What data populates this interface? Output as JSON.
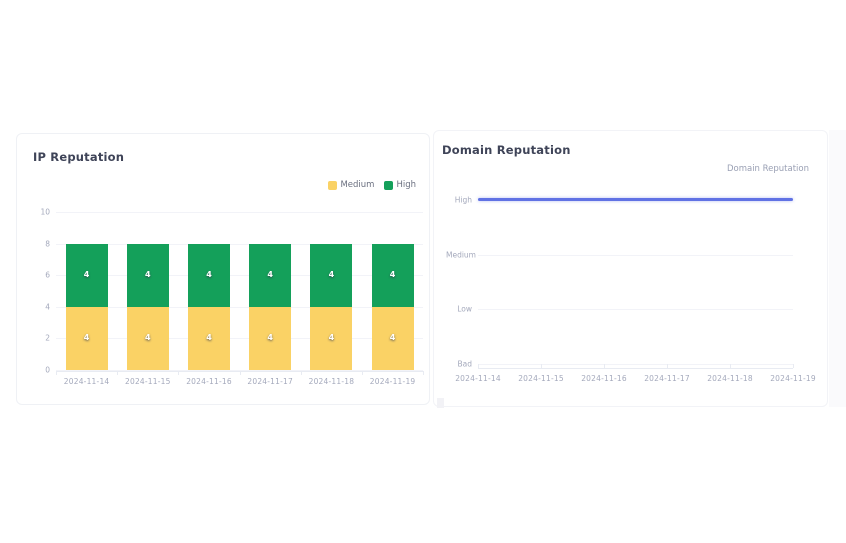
{
  "chart_data": [
    {
      "type": "bar",
      "stacked": true,
      "title": "IP Reputation",
      "categories": [
        "2024-11-14",
        "2024-11-15",
        "2024-11-16",
        "2024-11-17",
        "2024-11-18",
        "2024-11-19"
      ],
      "series": [
        {
          "name": "Medium",
          "color": "#fad265",
          "values": [
            4,
            4,
            4,
            4,
            4,
            4
          ]
        },
        {
          "name": "High",
          "color": "#14a05a",
          "values": [
            4,
            4,
            4,
            4,
            4,
            4
          ]
        }
      ],
      "data_labels": [
        "4",
        "4",
        "4",
        "4",
        "4",
        "4"
      ],
      "xlabel": "",
      "ylabel": "",
      "ylim": [
        0,
        10
      ],
      "yticks": [
        0,
        2,
        4,
        6,
        8,
        10
      ],
      "legend_position": "top-right",
      "grid": true
    },
    {
      "type": "line",
      "title": "Domain Reputation",
      "categories": [
        "2024-11-14",
        "2024-11-15",
        "2024-11-16",
        "2024-11-17",
        "2024-11-18",
        "2024-11-19"
      ],
      "ytick_labels": [
        "Bad",
        "Low",
        "Medium",
        "High"
      ],
      "series": [
        {
          "name": "Domain Reputation",
          "color": "#6072e4",
          "values": [
            "High",
            "High",
            "High",
            "High",
            "High",
            "High"
          ]
        }
      ],
      "xlabel": "",
      "ylabel": "",
      "legend_position": "top-right",
      "grid": true
    }
  ]
}
